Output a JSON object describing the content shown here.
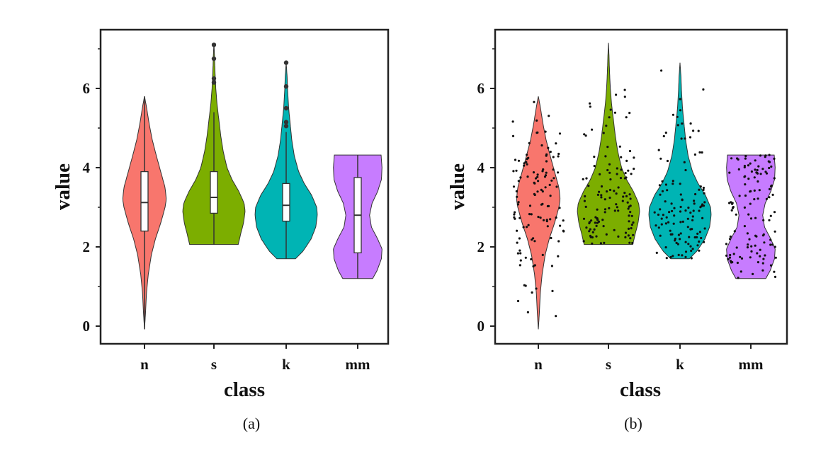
{
  "colors": {
    "n": "#f8766d",
    "s": "#7cae00",
    "k": "#00b4b4",
    "mm": "#c77cff",
    "axis": "#222222",
    "box": "#ffffff",
    "point": "#111111"
  },
  "chart_data": [
    {
      "type": "violin",
      "panel": "(a)",
      "variant": "violin-with-boxplot",
      "xlabel": "class",
      "ylabel": "value",
      "categories": [
        "n",
        "s",
        "k",
        "mm"
      ],
      "ylim": [
        -0.4,
        7.4
      ],
      "yticks": [
        0,
        2,
        4,
        6
      ],
      "yticks_labels": [
        "0",
        "2",
        "4",
        "6"
      ],
      "violins": [
        {
          "class": "n",
          "min": -0.08,
          "max": 5.8,
          "q1": 2.4,
          "median": 3.12,
          "q3": 3.9,
          "whisker_low": -0.08,
          "whisker_high": 5.8,
          "outliers": []
        },
        {
          "class": "s",
          "min": 2.06,
          "max": 7.15,
          "q1": 2.85,
          "median": 3.25,
          "q3": 3.9,
          "whisker_low": 2.06,
          "whisker_high": 5.4,
          "outliers": [
            6.15,
            6.25,
            6.75,
            7.1
          ]
        },
        {
          "class": "k",
          "min": 1.7,
          "max": 6.65,
          "q1": 2.65,
          "median": 3.05,
          "q3": 3.6,
          "whisker_low": 1.7,
          "whisker_high": 4.9,
          "outliers": [
            5.05,
            5.15,
            5.5,
            6.05,
            6.65
          ]
        },
        {
          "class": "mm",
          "min": 1.2,
          "max": 4.32,
          "q1": 1.85,
          "median": 2.8,
          "q3": 3.75,
          "whisker_low": 1.2,
          "whisker_high": 4.32,
          "outliers": []
        }
      ]
    },
    {
      "type": "violin",
      "panel": "(b)",
      "variant": "violin-with-jittered-points",
      "xlabel": "class",
      "ylabel": "value",
      "categories": [
        "n",
        "s",
        "k",
        "mm"
      ],
      "ylim": [
        -0.4,
        7.4
      ],
      "yticks": [
        0,
        2,
        4,
        6
      ],
      "yticks_labels": [
        "0",
        "2",
        "4",
        "6"
      ],
      "violins": [
        {
          "class": "n",
          "min": -0.08,
          "max": 5.8
        },
        {
          "class": "s",
          "min": 2.06,
          "max": 7.15
        },
        {
          "class": "k",
          "min": 1.7,
          "max": 6.65
        },
        {
          "class": "mm",
          "min": 1.2,
          "max": 4.32
        }
      ],
      "points_per_class": 120
    }
  ]
}
